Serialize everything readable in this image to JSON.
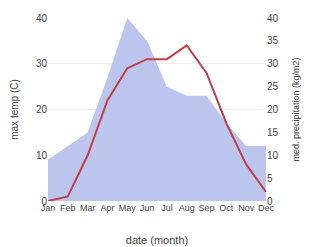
{
  "chart_data": {
    "type": "line",
    "categories": [
      "Jan",
      "Feb",
      "Mar",
      "Apr",
      "May",
      "Jun",
      "Jul",
      "Aug",
      "Sep",
      "Oct",
      "Nov",
      "Dec"
    ],
    "series": [
      {
        "type": "area",
        "color": "#bcc5ee",
        "axis": "y2",
        "values": [
          9,
          12,
          15,
          27,
          40,
          35,
          25,
          23,
          23,
          17,
          12,
          12
        ]
      },
      {
        "type": "line",
        "color": "#c0404a",
        "axis": "y",
        "values": [
          0,
          1,
          10,
          22,
          29,
          31,
          31,
          34,
          28,
          17,
          8,
          2
        ]
      }
    ],
    "x_label": "date (month)",
    "y_label": "max temp (C)",
    "y2_label": "med. precipitation (kg/m2)",
    "ylim": [
      0,
      40
    ],
    "yticks": [
      0,
      10,
      20,
      30,
      40
    ],
    "y2lim": [
      0,
      40
    ],
    "y2ticks": [
      0,
      5,
      10,
      15,
      20,
      25,
      30,
      35,
      40
    ],
    "grid": true
  }
}
